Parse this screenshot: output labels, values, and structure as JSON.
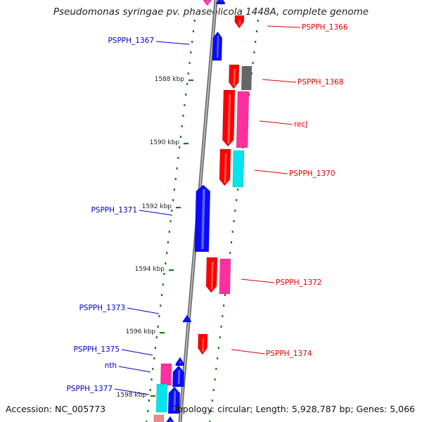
{
  "title": "Pseudomonas syringae pv. phaseolicola 1448A, complete genome",
  "footer": {
    "accession": "Accession: NC_005773",
    "summary": "Topology: circular; Length: 5,928,787 bp; Genes: 5,066"
  },
  "colors": {
    "forward_label": "#0000cc",
    "reverse_label": "#dd0000",
    "blue": "#0a0aff",
    "red": "#ff0000",
    "magenta": "#ff2fa0",
    "cyan": "#00e5ee",
    "gray": "#666666",
    "pink": "#e88a8a",
    "tick": "#1a7a1a",
    "backbone": "#9a9a9a"
  },
  "scale_labels": [
    "1588 kbp",
    "1590 kbp",
    "1592 kbp",
    "1594 kbp",
    "1596 kbp",
    "1598 kbp"
  ],
  "gene_labels_forward": [
    "PSPPH_1367",
    "PSPPH_1371",
    "PSPPH_1373",
    "PSPPH_1375",
    "nth",
    "PSPPH_1377"
  ],
  "gene_labels_reverse": [
    "PSPPH_1366",
    "PSPPH_1368",
    "recJ",
    "PSPPH_1370",
    "PSPPH_1372",
    "PSPPH_1374"
  ]
}
